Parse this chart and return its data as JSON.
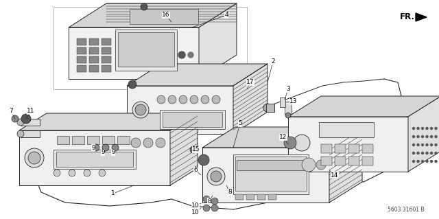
{
  "bg_color": "#ffffff",
  "line_color": "#222222",
  "fig_width": 6.4,
  "fig_height": 3.19,
  "dpi": 100,
  "diagram_code_id": "5603 31601 B",
  "fr_label": "FR.",
  "label_fontsize": 6.5,
  "code_fontsize": 5.5,
  "fr_fontsize": 8.5
}
